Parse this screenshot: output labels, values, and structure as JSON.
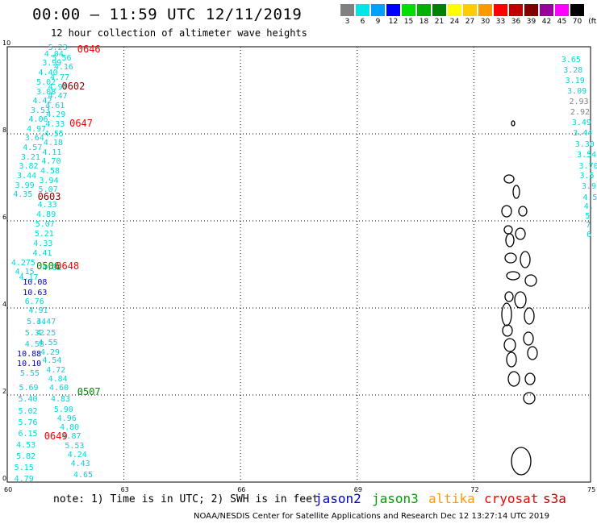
{
  "header": {
    "title": "00:00 – 11:59 UTC 12/11/2019",
    "subtitle": "12 hour collection of altimeter wave heights"
  },
  "legend": {
    "unit": "(ft)",
    "bins": [
      {
        "label": "3",
        "color": "#808080"
      },
      {
        "label": "6",
        "color": "#00e5e5"
      },
      {
        "label": "9",
        "color": "#00a0ff"
      },
      {
        "label": "12",
        "color": "#0000ff"
      },
      {
        "label": "15",
        "color": "#00dd00"
      },
      {
        "label": "18",
        "color": "#00b000"
      },
      {
        "label": "21",
        "color": "#008000"
      },
      {
        "label": "24",
        "color": "#ffff00"
      },
      {
        "label": "27",
        "color": "#ffcc00"
      },
      {
        "label": "30",
        "color": "#ff9900"
      },
      {
        "label": "33",
        "color": "#ff0000"
      },
      {
        "label": "36",
        "color": "#c00000"
      },
      {
        "label": "39",
        "color": "#800000"
      },
      {
        "label": "42",
        "color": "#990099"
      },
      {
        "label": "45",
        "color": "#ff00ff"
      },
      {
        "label": "70",
        "color": "#000000"
      }
    ]
  },
  "map": {
    "lon_range": [
      60,
      75
    ],
    "lat_range": [
      0,
      10
    ],
    "x_ticks": [
      "60",
      "63",
      "66",
      "69",
      "72",
      "75"
    ],
    "y_ticks": [
      "0",
      "2",
      "4",
      "6",
      "8",
      "10"
    ],
    "colors": {
      "cyan": "#00d8d8",
      "gray": "#808080",
      "blue": "#0000cc",
      "red": "#ff0000",
      "darkred": "#900000",
      "green": "#008800"
    },
    "left_track": [
      {
        "lon": 61.05,
        "lat": 9.96,
        "text": "5.23",
        "c": "cyan"
      },
      {
        "lon": 60.95,
        "lat": 9.82,
        "text": "4.04",
        "c": "cyan"
      },
      {
        "lon": 61.15,
        "lat": 9.72,
        "text": "5.56",
        "c": "cyan"
      },
      {
        "lon": 60.9,
        "lat": 9.61,
        "text": "3.99",
        "c": "cyan"
      },
      {
        "lon": 61.2,
        "lat": 9.51,
        "text": "4.16",
        "c": "cyan"
      },
      {
        "lon": 60.8,
        "lat": 9.39,
        "text": "4.40",
        "c": "cyan"
      },
      {
        "lon": 61.1,
        "lat": 9.28,
        "text": "4.77",
        "c": "cyan"
      },
      {
        "lon": 60.75,
        "lat": 9.16,
        "text": "5.02",
        "c": "cyan"
      },
      {
        "lon": 61.05,
        "lat": 9.06,
        "text": "4.97",
        "c": "cyan"
      },
      {
        "lon": 60.75,
        "lat": 8.95,
        "text": "3.08",
        "c": "cyan"
      },
      {
        "lon": 61.05,
        "lat": 8.85,
        "text": "4.47",
        "c": "cyan"
      },
      {
        "lon": 60.65,
        "lat": 8.74,
        "text": "4.42",
        "c": "cyan"
      },
      {
        "lon": 60.98,
        "lat": 8.63,
        "text": "4.61",
        "c": "cyan"
      },
      {
        "lon": 60.6,
        "lat": 8.52,
        "text": "3.53",
        "c": "cyan"
      },
      {
        "lon": 61.0,
        "lat": 8.42,
        "text": "4.29",
        "c": "cyan"
      },
      {
        "lon": 60.55,
        "lat": 8.31,
        "text": "4.06",
        "c": "cyan"
      },
      {
        "lon": 60.98,
        "lat": 8.21,
        "text": "4.33",
        "c": "cyan"
      },
      {
        "lon": 60.5,
        "lat": 8.1,
        "text": "4.97",
        "c": "cyan"
      },
      {
        "lon": 60.95,
        "lat": 7.99,
        "text": "4.55",
        "c": "cyan"
      },
      {
        "lon": 60.45,
        "lat": 7.88,
        "text": "3.64",
        "c": "cyan"
      },
      {
        "lon": 60.93,
        "lat": 7.77,
        "text": "4.18",
        "c": "cyan"
      },
      {
        "lon": 60.4,
        "lat": 7.67,
        "text": "4.57",
        "c": "cyan"
      },
      {
        "lon": 60.9,
        "lat": 7.56,
        "text": "4.11",
        "c": "cyan"
      },
      {
        "lon": 60.35,
        "lat": 7.45,
        "text": "3.21",
        "c": "cyan"
      },
      {
        "lon": 60.88,
        "lat": 7.35,
        "text": "4.70",
        "c": "cyan"
      },
      {
        "lon": 60.3,
        "lat": 7.24,
        "text": "3.82",
        "c": "cyan"
      },
      {
        "lon": 60.85,
        "lat": 7.13,
        "text": "4.58",
        "c": "cyan"
      },
      {
        "lon": 60.25,
        "lat": 7.02,
        "text": "3.44",
        "c": "cyan"
      },
      {
        "lon": 60.82,
        "lat": 6.91,
        "text": "3.94",
        "c": "cyan"
      },
      {
        "lon": 60.2,
        "lat": 6.8,
        "text": "3.99",
        "c": "cyan"
      },
      {
        "lon": 60.8,
        "lat": 6.7,
        "text": "5.07",
        "c": "cyan"
      },
      {
        "lon": 60.15,
        "lat": 6.59,
        "text": "4.35",
        "c": "cyan"
      },
      {
        "lon": 60.78,
        "lat": 6.36,
        "text": "4.33",
        "c": "cyan"
      },
      {
        "lon": 60.75,
        "lat": 6.13,
        "text": "4.89",
        "c": "cyan"
      },
      {
        "lon": 60.72,
        "lat": 5.91,
        "text": "5.07",
        "c": "cyan"
      },
      {
        "lon": 60.7,
        "lat": 5.68,
        "text": "5.21",
        "c": "cyan"
      },
      {
        "lon": 60.67,
        "lat": 5.46,
        "text": "4.33",
        "c": "cyan"
      },
      {
        "lon": 60.65,
        "lat": 5.24,
        "text": "4.41",
        "c": "cyan"
      },
      {
        "lon": 60.1,
        "lat": 5.02,
        "text": "4.275",
        "c": "cyan"
      },
      {
        "lon": 60.9,
        "lat": 4.91,
        "text": "4.02",
        "c": "cyan"
      },
      {
        "lon": 60.2,
        "lat": 4.81,
        "text": "4.15",
        "c": "cyan"
      },
      {
        "lon": 60.4,
        "lat": 4.58,
        "text": "10.08",
        "c": "blue"
      },
      {
        "lon": 60.3,
        "lat": 4.69,
        "text": "4.17",
        "c": "cyan"
      },
      {
        "lon": 60.4,
        "lat": 4.34,
        "text": "10.63",
        "c": "blue"
      },
      {
        "lon": 60.45,
        "lat": 4.13,
        "text": "6.76",
        "c": "cyan"
      },
      {
        "lon": 60.55,
        "lat": 3.93,
        "text": "4.91",
        "c": "cyan"
      },
      {
        "lon": 60.5,
        "lat": 3.66,
        "text": "5.34",
        "c": "cyan"
      },
      {
        "lon": 60.75,
        "lat": 3.66,
        "text": "4.47",
        "c": "cyan"
      },
      {
        "lon": 60.45,
        "lat": 3.4,
        "text": "5.32",
        "c": "cyan"
      },
      {
        "lon": 60.75,
        "lat": 3.4,
        "text": "4.25",
        "c": "cyan"
      },
      {
        "lon": 60.45,
        "lat": 3.14,
        "text": "4.58",
        "c": "cyan"
      },
      {
        "lon": 60.8,
        "lat": 3.19,
        "text": "4.55",
        "c": "cyan"
      },
      {
        "lon": 60.25,
        "lat": 2.92,
        "text": "10.88",
        "c": "blue"
      },
      {
        "lon": 60.85,
        "lat": 2.97,
        "text": "4.29",
        "c": "cyan"
      },
      {
        "lon": 60.25,
        "lat": 2.7,
        "text": "10.10",
        "c": "blue"
      },
      {
        "lon": 60.9,
        "lat": 2.77,
        "text": "4.54",
        "c": "cyan"
      },
      {
        "lon": 60.33,
        "lat": 2.48,
        "text": "5.55",
        "c": "cyan"
      },
      {
        "lon": 61.0,
        "lat": 2.56,
        "text": "4.72",
        "c": "cyan"
      },
      {
        "lon": 61.05,
        "lat": 2.35,
        "text": "4.84",
        "c": "cyan"
      },
      {
        "lon": 60.3,
        "lat": 2.14,
        "text": "5.69",
        "c": "cyan"
      },
      {
        "lon": 61.08,
        "lat": 2.14,
        "text": "4.60",
        "c": "cyan"
      },
      {
        "lon": 60.28,
        "lat": 1.88,
        "text": "5.40",
        "c": "cyan"
      },
      {
        "lon": 61.12,
        "lat": 1.88,
        "text": "4.83",
        "c": "cyan"
      },
      {
        "lon": 60.28,
        "lat": 1.62,
        "text": "5.02",
        "c": "cyan"
      },
      {
        "lon": 61.2,
        "lat": 1.65,
        "text": "5.90",
        "c": "cyan"
      },
      {
        "lon": 60.28,
        "lat": 1.36,
        "text": "5.76",
        "c": "cyan"
      },
      {
        "lon": 61.28,
        "lat": 1.44,
        "text": "4.96",
        "c": "cyan"
      },
      {
        "lon": 60.28,
        "lat": 1.1,
        "text": "6.15",
        "c": "cyan"
      },
      {
        "lon": 61.35,
        "lat": 1.24,
        "text": "4.80",
        "c": "cyan"
      },
      {
        "lon": 61.4,
        "lat": 1.03,
        "text": "4.87",
        "c": "cyan"
      },
      {
        "lon": 60.23,
        "lat": 0.84,
        "text": "4.53",
        "c": "cyan"
      },
      {
        "lon": 61.48,
        "lat": 0.82,
        "text": "5.53",
        "c": "cyan"
      },
      {
        "lon": 60.23,
        "lat": 0.58,
        "text": "5.82",
        "c": "cyan"
      },
      {
        "lon": 61.55,
        "lat": 0.61,
        "text": "4.24",
        "c": "cyan"
      },
      {
        "lon": 60.18,
        "lat": 0.32,
        "text": "5.15",
        "c": "cyan"
      },
      {
        "lon": 61.63,
        "lat": 0.4,
        "text": "4.43",
        "c": "cyan"
      },
      {
        "lon": 60.18,
        "lat": 0.06,
        "text": "4.79",
        "c": "cyan"
      },
      {
        "lon": 61.7,
        "lat": 0.15,
        "text": "4.65",
        "c": "cyan"
      }
    ],
    "right_track": [
      {
        "lon": 74.25,
        "lat": 9.68,
        "text": "3.65",
        "c": "cyan"
      },
      {
        "lon": 74.3,
        "lat": 9.44,
        "text": "3.28",
        "c": "cyan"
      },
      {
        "lon": 74.35,
        "lat": 9.2,
        "text": "3.19",
        "c": "cyan"
      },
      {
        "lon": 74.4,
        "lat": 8.96,
        "text": "3.09",
        "c": "cyan"
      },
      {
        "lon": 74.45,
        "lat": 8.72,
        "text": "2.93",
        "c": "gray"
      },
      {
        "lon": 74.48,
        "lat": 8.48,
        "text": "2.92",
        "c": "gray"
      },
      {
        "lon": 74.52,
        "lat": 8.24,
        "text": "3.49",
        "c": "cyan"
      },
      {
        "lon": 74.55,
        "lat": 8.0,
        "text": "3.44",
        "c": "cyan"
      },
      {
        "lon": 74.6,
        "lat": 7.74,
        "text": "3.30",
        "c": "cyan"
      },
      {
        "lon": 74.65,
        "lat": 7.5,
        "text": "3.54",
        "c": "cyan"
      },
      {
        "lon": 74.7,
        "lat": 7.25,
        "text": "3.70",
        "c": "cyan"
      },
      {
        "lon": 74.72,
        "lat": 7.01,
        "text": "3.5",
        "c": "cyan"
      },
      {
        "lon": 74.77,
        "lat": 6.77,
        "text": "3.9",
        "c": "cyan"
      },
      {
        "lon": 74.8,
        "lat": 6.52,
        "text": "4.5",
        "c": "cyan"
      },
      {
        "lon": 74.83,
        "lat": 6.32,
        "text": "4.",
        "c": "cyan"
      },
      {
        "lon": 74.86,
        "lat": 6.1,
        "text": "5",
        "c": "cyan"
      },
      {
        "lon": 74.88,
        "lat": 5.88,
        "text": "7",
        "c": "cyan"
      },
      {
        "lon": 74.9,
        "lat": 5.66,
        "text": "6",
        "c": "cyan"
      }
    ],
    "passes": [
      {
        "lon": 61.8,
        "lat": 9.96,
        "text": "0646",
        "c": "red"
      },
      {
        "lon": 61.4,
        "lat": 9.12,
        "text": "0602",
        "c": "darkred"
      },
      {
        "lon": 61.6,
        "lat": 8.26,
        "text": "0647",
        "c": "red"
      },
      {
        "lon": 60.78,
        "lat": 6.58,
        "text": "0603",
        "c": "darkred"
      },
      {
        "lon": 60.75,
        "lat": 4.98,
        "text": "0506",
        "c": "green"
      },
      {
        "lon": 61.25,
        "lat": 4.98,
        "text": "0648",
        "c": "red"
      },
      {
        "lon": 61.8,
        "lat": 2.09,
        "text": "0507",
        "c": "green"
      },
      {
        "lon": 60.95,
        "lat": 1.08,
        "text": "0649",
        "c": "red"
      }
    ]
  },
  "footer": {
    "note": "note: 1) Time is in UTC; 2) SWH is in feet",
    "satellites": [
      {
        "name": "jason2",
        "color": "#0000cc"
      },
      {
        "name": "jason3",
        "color": "#00a000"
      },
      {
        "name": "altika",
        "color": "#ff9900"
      },
      {
        "name": "cryosat",
        "color": "#ff0000"
      },
      {
        "name": "s3a",
        "color": "#cc0000"
      }
    ],
    "credit": "NOAA/NESDIS Center for Satellite Applications and Research    Dec 12 13:27:14 UTC 2019"
  }
}
